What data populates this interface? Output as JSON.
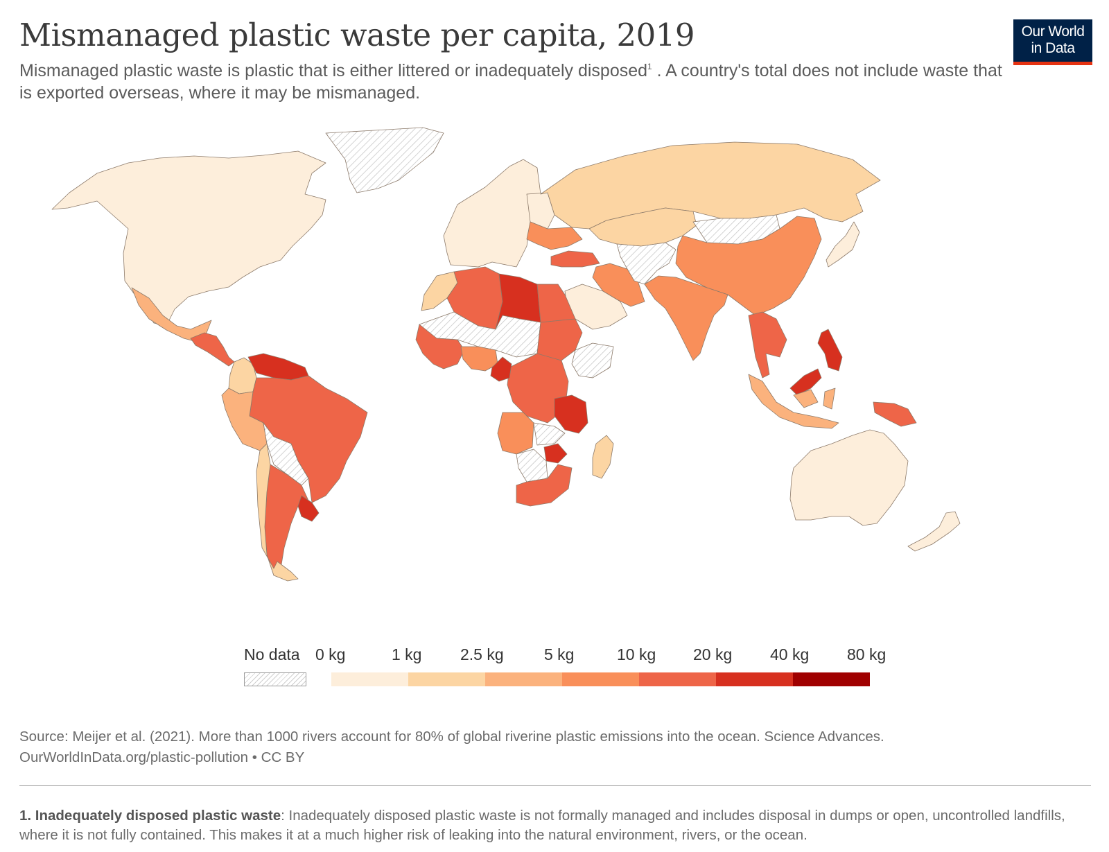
{
  "header": {
    "title": "Mismanaged plastic waste per capita, 2019",
    "subtitle_part1": "Mismanaged plastic waste is plastic that is either littered or inadequately disposed",
    "subtitle_footnote_mark": "1",
    "subtitle_part2": " . A country's total does not include waste that is exported overseas, where it may be mismanaged."
  },
  "logo": {
    "line1": "Our World",
    "line2": "in Data",
    "bg_color": "#002147",
    "accent_color": "#e63312"
  },
  "legend": {
    "no_data_label": "No data",
    "bins": [
      {
        "from": "0 kg",
        "to": "1 kg",
        "color": "#fdeedb"
      },
      {
        "from": "1 kg",
        "to": "2.5 kg",
        "color": "#fcd5a3"
      },
      {
        "from": "2.5 kg",
        "to": "5 kg",
        "color": "#fbb27d"
      },
      {
        "from": "5 kg",
        "to": "10 kg",
        "color": "#f98f5a"
      },
      {
        "from": "10 kg",
        "to": "20 kg",
        "color": "#ee6548"
      },
      {
        "from": "20 kg",
        "to": "40 kg",
        "color": "#d7301f"
      },
      {
        "from": "40 kg",
        "to": "80 kg",
        "color": "#a00000"
      }
    ],
    "tick_labels": [
      "0 kg",
      "1 kg",
      "2.5 kg",
      "5 kg",
      "10 kg",
      "20 kg",
      "40 kg",
      "80 kg"
    ]
  },
  "source": {
    "line1": "Source: Meijer et al. (2021). More than 1000 rivers account for 80% of global riverine plastic emissions into the ocean. Science Advances.",
    "line2": "OurWorldInData.org/plastic-pollution • CC BY"
  },
  "footnote": {
    "term": "1. Inadequately disposed plastic waste",
    "text": ": Inadequately disposed plastic waste is not formally managed and includes disposal in dumps or open, uncontrolled landfills, where it is not fully contained. This makes it at a much higher risk of leaking into the natural environment, rivers, or the ocean."
  },
  "regions": [
    {
      "name": "North America",
      "bin": 0
    },
    {
      "name": "Greenland",
      "bin": -1
    },
    {
      "name": "Mexico",
      "bin": 2
    },
    {
      "name": "Central America",
      "bin": 4
    },
    {
      "name": "Colombia",
      "bin": 1
    },
    {
      "name": "Venezuela",
      "bin": 5
    },
    {
      "name": "Brazil",
      "bin": 4
    },
    {
      "name": "Peru",
      "bin": 2
    },
    {
      "name": "Bolivia",
      "bin": -1
    },
    {
      "name": "Argentina",
      "bin": 4
    },
    {
      "name": "Chile",
      "bin": 1
    },
    {
      "name": "Uruguay",
      "bin": 5
    },
    {
      "name": "Western Europe",
      "bin": 0
    },
    {
      "name": "Eastern Europe",
      "bin": 0
    },
    {
      "name": "Ukraine",
      "bin": 3
    },
    {
      "name": "Russia",
      "bin": 1
    },
    {
      "name": "Kazakhstan",
      "bin": 1
    },
    {
      "name": "Mongolia",
      "bin": -1
    },
    {
      "name": "China",
      "bin": 3
    },
    {
      "name": "Turkey",
      "bin": 4
    },
    {
      "name": "Iran",
      "bin": 3
    },
    {
      "name": "Central Asia",
      "bin": -1
    },
    {
      "name": "India",
      "bin": 3
    },
    {
      "name": "Saudi Arabia",
      "bin": 0
    },
    {
      "name": "Japan",
      "bin": 0
    },
    {
      "name": "Southeast Asia",
      "bin": 4
    },
    {
      "name": "Philippines",
      "bin": 5
    },
    {
      "name": "Malaysia",
      "bin": 5
    },
    {
      "name": "Indonesia",
      "bin": 2
    },
    {
      "name": "Papua New Guinea",
      "bin": 4
    },
    {
      "name": "Australia",
      "bin": 0
    },
    {
      "name": "New Zealand",
      "bin": 0
    },
    {
      "name": "Morocco",
      "bin": 1
    },
    {
      "name": "Algeria",
      "bin": 4
    },
    {
      "name": "Libya",
      "bin": 5
    },
    {
      "name": "Egypt",
      "bin": 4
    },
    {
      "name": "Sahel",
      "bin": -1
    },
    {
      "name": "Sudan",
      "bin": 4
    },
    {
      "name": "West Africa",
      "bin": 4
    },
    {
      "name": "Nigeria",
      "bin": 3
    },
    {
      "name": "Central Africa",
      "bin": 4
    },
    {
      "name": "Cameroon",
      "bin": 5
    },
    {
      "name": "Ethiopia",
      "bin": -1
    },
    {
      "name": "Tanzania",
      "bin": 5
    },
    {
      "name": "Angola",
      "bin": 3
    },
    {
      "name": "Zambia",
      "bin": -1
    },
    {
      "name": "Zimbabwe",
      "bin": 5
    },
    {
      "name": "Namibia",
      "bin": -1
    },
    {
      "name": "South Africa",
      "bin": 4
    },
    {
      "name": "Madagascar",
      "bin": 1
    }
  ]
}
